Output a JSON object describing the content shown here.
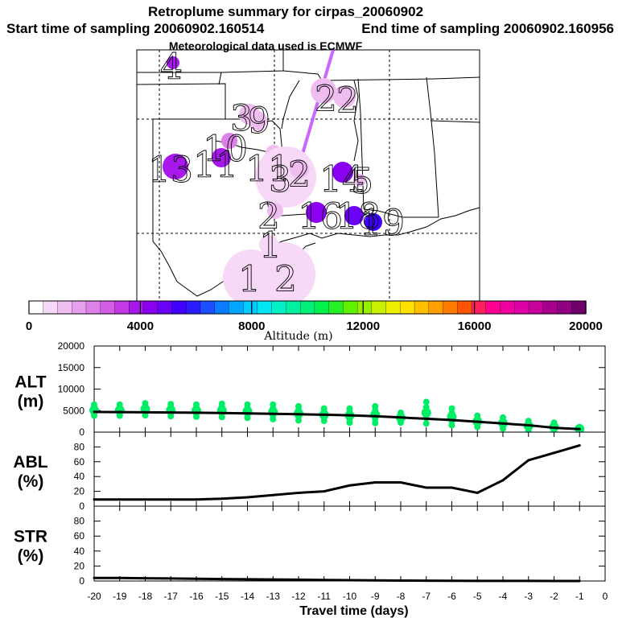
{
  "title": {
    "line1": "Retroplume summary for cirpas_20060902",
    "line2_start": "Start time of sampling 20060902.160514",
    "line2_end": "End time of sampling 20060902.160956",
    "line3": "Meteorological data used is ECMWF"
  },
  "colorbar": {
    "label": "Altitude (m)",
    "min": 0,
    "max": 20000,
    "ticks": [
      0,
      4000,
      8000,
      12000,
      16000,
      20000
    ],
    "colors": [
      "#ffffff",
      "#f7d9f7",
      "#f0bdf0",
      "#e8a0ee",
      "#de80ea",
      "#d35ee6",
      "#c13ae6",
      "#a818ec",
      "#8a00f0",
      "#6a00f6",
      "#4000ff",
      "#2a1cff",
      "#1a4eff",
      "#0a7cff",
      "#00a6ff",
      "#00ccff",
      "#00e6f2",
      "#00f0c8",
      "#00f0a0",
      "#00f07a",
      "#00f050",
      "#28f028",
      "#60f000",
      "#98f000",
      "#c8f000",
      "#eef000",
      "#ffe000",
      "#ffc000",
      "#ffa000",
      "#ff7c00",
      "#ff5400",
      "#ff2060",
      "#ff0090",
      "#f000a0",
      "#e000a8",
      "#c8009c",
      "#a8008c",
      "#900080",
      "#70006c"
    ]
  },
  "map": {
    "plume_labels": [
      {
        "text": "4",
        "c": "#a818ec",
        "r": 8
      },
      {
        "text": "3",
        "c": "#f0bdf0",
        "r": 13
      },
      {
        "text": "2",
        "c": "#f0bdf0",
        "r": 16
      },
      {
        "text": "9",
        "c": "#f0bdf0",
        "r": 12
      },
      {
        "text": "2",
        "c": "#f0bdf0",
        "r": 14
      },
      {
        "text": "10",
        "c": "#de80ea",
        "r": 10
      },
      {
        "text": "13",
        "c": "#a818ec",
        "r": 16
      },
      {
        "text": "11",
        "c": "#a818ec",
        "r": 12
      },
      {
        "text": "11",
        "c": "#f0bdf0",
        "r": 10
      },
      {
        "text": "3",
        "c": "#f7d9f7",
        "r": 38
      },
      {
        "text": "2",
        "c": "#f0bdf0",
        "r": 12
      },
      {
        "text": "14",
        "c": "#8a00f0",
        "r": 13
      },
      {
        "text": "5",
        "c": "#f0bdf0",
        "r": 8
      },
      {
        "text": "2",
        "c": "#f0bdf0",
        "r": 10
      },
      {
        "text": "16",
        "c": "#8a00f0",
        "r": 13
      },
      {
        "text": "18",
        "c": "#6a00f6",
        "r": 12
      },
      {
        "text": "19",
        "c": "#4000ff",
        "r": 11
      },
      {
        "text": "1",
        "c": "#f7d9f7",
        "r": 12
      },
      {
        "text": "1",
        "c": "#f7d9f7",
        "r": 35
      },
      {
        "text": "2",
        "c": "#f7d9f7",
        "r": 40
      }
    ]
  },
  "chart_data": [
    {
      "type": "scatter",
      "name": "ALT",
      "ylabel": "ALT (m)",
      "ylabel_line1": "ALT",
      "ylabel_line2": "(m)",
      "xlim": [
        -20,
        0
      ],
      "ylim": [
        0,
        20000
      ],
      "yticks": [
        "0",
        "5000",
        "10000",
        "15000",
        "20000"
      ],
      "ytick_values": [
        0,
        5000,
        10000,
        15000,
        20000
      ],
      "median_line": {
        "x": [
          -20,
          -19,
          -18,
          -17,
          -16,
          -15,
          -14,
          -13,
          -12,
          -11,
          -10,
          -9,
          -8,
          -7,
          -6,
          -5,
          -4,
          -3,
          -2,
          -1
        ],
        "y": [
          4700,
          4650,
          4600,
          4550,
          4500,
          4450,
          4350,
          4250,
          4150,
          4050,
          3900,
          3700,
          3400,
          3100,
          2800,
          2400,
          2000,
          1600,
          1000,
          700
        ]
      },
      "spread": {
        "x": [
          -20,
          -19,
          -18,
          -17,
          -16,
          -15,
          -14,
          -13,
          -12,
          -11,
          -10,
          -9,
          -8,
          -7,
          -6,
          -5,
          -4,
          -3,
          -2,
          -1
        ],
        "ymin": [
          3800,
          3800,
          3900,
          3700,
          3600,
          3500,
          3300,
          3000,
          2700,
          2600,
          2200,
          2100,
          2200,
          2000,
          1600,
          1200,
          800,
          300,
          200,
          300
        ],
        "ymax": [
          6400,
          6400,
          6700,
          6500,
          6400,
          6600,
          6400,
          6400,
          6000,
          5500,
          5500,
          6000,
          4500,
          7000,
          5500,
          3800,
          3400,
          2600,
          2200,
          1200
        ]
      },
      "point_color": "#00ee66"
    },
    {
      "type": "line",
      "name": "ABL",
      "ylabel": "ABL (%)",
      "ylabel_line1": "ABL",
      "ylabel_line2": "(%)",
      "xlim": [
        -20,
        0
      ],
      "ylim": [
        0,
        100
      ],
      "yticks": [
        "0",
        "20",
        "40",
        "60",
        "80"
      ],
      "ytick_values": [
        0,
        20,
        40,
        60,
        80
      ],
      "x": [
        -20,
        -19,
        -18,
        -17,
        -16,
        -15,
        -14,
        -13,
        -12,
        -11,
        -10,
        -9,
        -8,
        -7,
        -6,
        -5,
        -4,
        -3,
        -2,
        -1
      ],
      "y": [
        9,
        9,
        9,
        9,
        9,
        10,
        12,
        15,
        18,
        20,
        28,
        32,
        32,
        25,
        25,
        18,
        35,
        62,
        72,
        82
      ]
    },
    {
      "type": "line",
      "name": "STR",
      "ylabel": "STR (%)",
      "ylabel_line1": "STR",
      "ylabel_line2": "(%)",
      "xlim": [
        -20,
        0
      ],
      "ylim": [
        0,
        100
      ],
      "yticks": [
        "0",
        "20",
        "40",
        "60",
        "80"
      ],
      "ytick_values": [
        0,
        20,
        40,
        60,
        80
      ],
      "xlabel": "Travel time (days)",
      "xticks": [
        "-20",
        "-19",
        "-18",
        "-17",
        "-16",
        "-15",
        "-14",
        "-13",
        "-12",
        "-11",
        "-10",
        "-9",
        "-8",
        "-7",
        "-6",
        "-5",
        "-4",
        "-3",
        "-2",
        "-1",
        "0"
      ],
      "x": [
        -20,
        -19,
        -18,
        -17,
        -16,
        -15,
        -14,
        -13,
        -12,
        -11,
        -10,
        -9,
        -8,
        -7,
        -6,
        -5,
        -4,
        -3,
        -2,
        -1
      ],
      "y": [
        4,
        4,
        3.6,
        3.3,
        3,
        2.6,
        2.3,
        2,
        1.7,
        1.4,
        1.1,
        0.8,
        0.6,
        0.4,
        0.3,
        0.2,
        0.1,
        0.1,
        0,
        0
      ]
    }
  ]
}
